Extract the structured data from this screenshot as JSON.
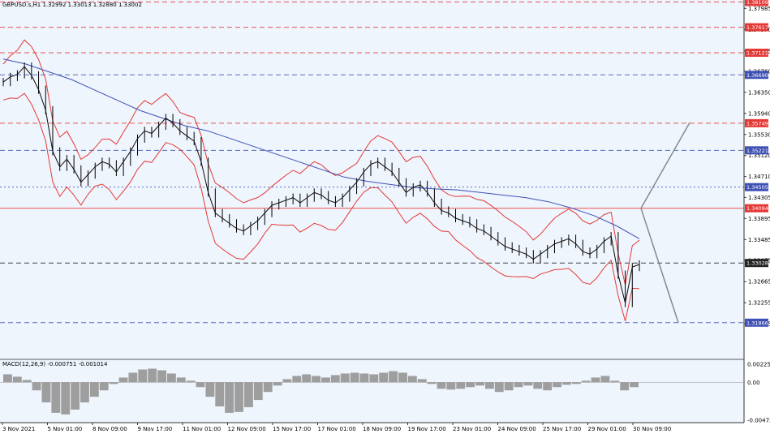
{
  "chart_data": {
    "type": "candlestick",
    "symbol_header": "GBPUSD.s,H1  1.32992 1.33013 1.32880 1.33002",
    "price_range": [
      1.3131,
      1.381
    ],
    "price_ticks": [
      "1.37985",
      "1.37570",
      "1.37155",
      "1.36760",
      "1.36350",
      "1.35940",
      "1.35530",
      "1.35120",
      "1.34710",
      "1.34305",
      "1.33895",
      "1.33485",
      "1.33075",
      "1.32665",
      "1.32255",
      "1.31845"
    ],
    "x_labels": [
      "3 Nov 2021",
      "5 Nov 01:00",
      "8 Nov 09:00",
      "9 Nov 17:00",
      "11 Nov 01:00",
      "12 Nov 09:00",
      "15 Nov 17:00",
      "17 Nov 01:00",
      "18 Nov 09:00",
      "19 Nov 17:00",
      "23 Nov 01:00",
      "24 Nov 09:00",
      "25 Nov 17:00",
      "29 Nov 01:00",
      "30 Nov 09:00"
    ],
    "levels": [
      {
        "label": "1.38109",
        "value": 1.38109,
        "color": "#e53935",
        "style": "dash"
      },
      {
        "label": "1.37617",
        "value": 1.37617,
        "color": "#e53935",
        "style": "dash"
      },
      {
        "label": "1.37121",
        "value": 1.37121,
        "color": "#e53935",
        "style": "dash"
      },
      {
        "label": "1.36690",
        "value": 1.3669,
        "color": "#3f51b5",
        "style": "dash"
      },
      {
        "label": "1.35749",
        "value": 1.35749,
        "color": "#e53935",
        "style": "dash"
      },
      {
        "label": "1.35221",
        "value": 1.35221,
        "color": "#3f51b5",
        "style": "dash"
      },
      {
        "label": "1.34505",
        "value": 1.34505,
        "color": "#3f51b5",
        "style": "dot"
      },
      {
        "label": "1.34094",
        "value": 1.34094,
        "color": "#e53935",
        "style": "solid"
      },
      {
        "label": "1.33028",
        "value": 1.33028,
        "color": "#222222",
        "style": "dash"
      },
      {
        "label": "1.31866",
        "value": 1.31866,
        "color": "#3f51b5",
        "style": "dash"
      }
    ],
    "current_price": {
      "label": "1.33028",
      "value": 1.33028
    },
    "close_series": [
      1.3655,
      1.3665,
      1.367,
      1.3685,
      1.3668,
      1.364,
      1.36,
      1.352,
      1.349,
      1.3505,
      1.3485,
      1.346,
      1.3475,
      1.349,
      1.35,
      1.3495,
      1.348,
      1.35,
      1.352,
      1.3545,
      1.356,
      1.3555,
      1.357,
      1.3585,
      1.3575,
      1.356,
      1.355,
      1.354,
      1.35,
      1.344,
      1.34,
      1.339,
      1.338,
      1.337,
      1.3365,
      1.3375,
      1.3385,
      1.34,
      1.3415,
      1.342,
      1.3425,
      1.343,
      1.342,
      1.343,
      1.344,
      1.3435,
      1.3425,
      1.342,
      1.343,
      1.3445,
      1.346,
      1.348,
      1.3495,
      1.35,
      1.349,
      1.348,
      1.346,
      1.344,
      1.345,
      1.3455,
      1.344,
      1.342,
      1.3405,
      1.34,
      1.339,
      1.3385,
      1.338,
      1.337,
      1.3365,
      1.3355,
      1.3345,
      1.3335,
      1.333,
      1.3325,
      1.332,
      1.331,
      1.332,
      1.333,
      1.334,
      1.3345,
      1.335,
      1.334,
      1.3325,
      1.332,
      1.333,
      1.3345,
      1.3355,
      1.328,
      1.3225,
      1.3295,
      1.33
    ],
    "ma_series": [
      1.37,
      1.369,
      1.3675,
      1.366,
      1.364,
      1.362,
      1.36,
      1.3585,
      1.357,
      1.356,
      1.3545,
      1.353,
      1.3515,
      1.35,
      1.3485,
      1.347,
      1.3462,
      1.3456,
      1.345,
      1.3447,
      1.3445,
      1.344,
      1.3435,
      1.343,
      1.3422,
      1.341,
      1.3395,
      1.3375,
      1.335
    ],
    "macd": {
      "label": "MACD(12,26,9) -0.000751 -0.001014",
      "range": [
        -0.004723,
        0.002258
      ],
      "ticks": [
        "0.002258",
        "0.00",
        "-0.004723"
      ],
      "hist": [
        0.001,
        0.0007,
        0.0003,
        -0.001,
        -0.0025,
        -0.0038,
        -0.004,
        -0.0034,
        -0.0025,
        -0.0018,
        -0.001,
        -0.0002,
        0.0006,
        0.0012,
        0.0016,
        0.0017,
        0.0015,
        0.0011,
        0.0006,
        0.0002,
        -0.0006,
        -0.0018,
        -0.003,
        -0.0038,
        -0.0037,
        -0.0031,
        -0.0022,
        -0.0012,
        -0.0004,
        0.0004,
        0.0008,
        0.001,
        0.0008,
        0.0006,
        0.0009,
        0.0011,
        0.0012,
        0.0011,
        0.001,
        0.0012,
        0.0014,
        0.0012,
        0.0008,
        0.0004,
        -0.0002,
        -0.0008,
        -0.0009,
        -0.0008,
        -0.0006,
        -0.0004,
        -0.0008,
        -0.0012,
        -0.001,
        -0.0006,
        -0.0004,
        -0.0008,
        -0.001,
        -0.0006,
        -0.0003,
        -0.0002,
        0.0002,
        0.0006,
        0.0008,
        0.0002,
        -0.001,
        -0.0006
      ]
    }
  }
}
